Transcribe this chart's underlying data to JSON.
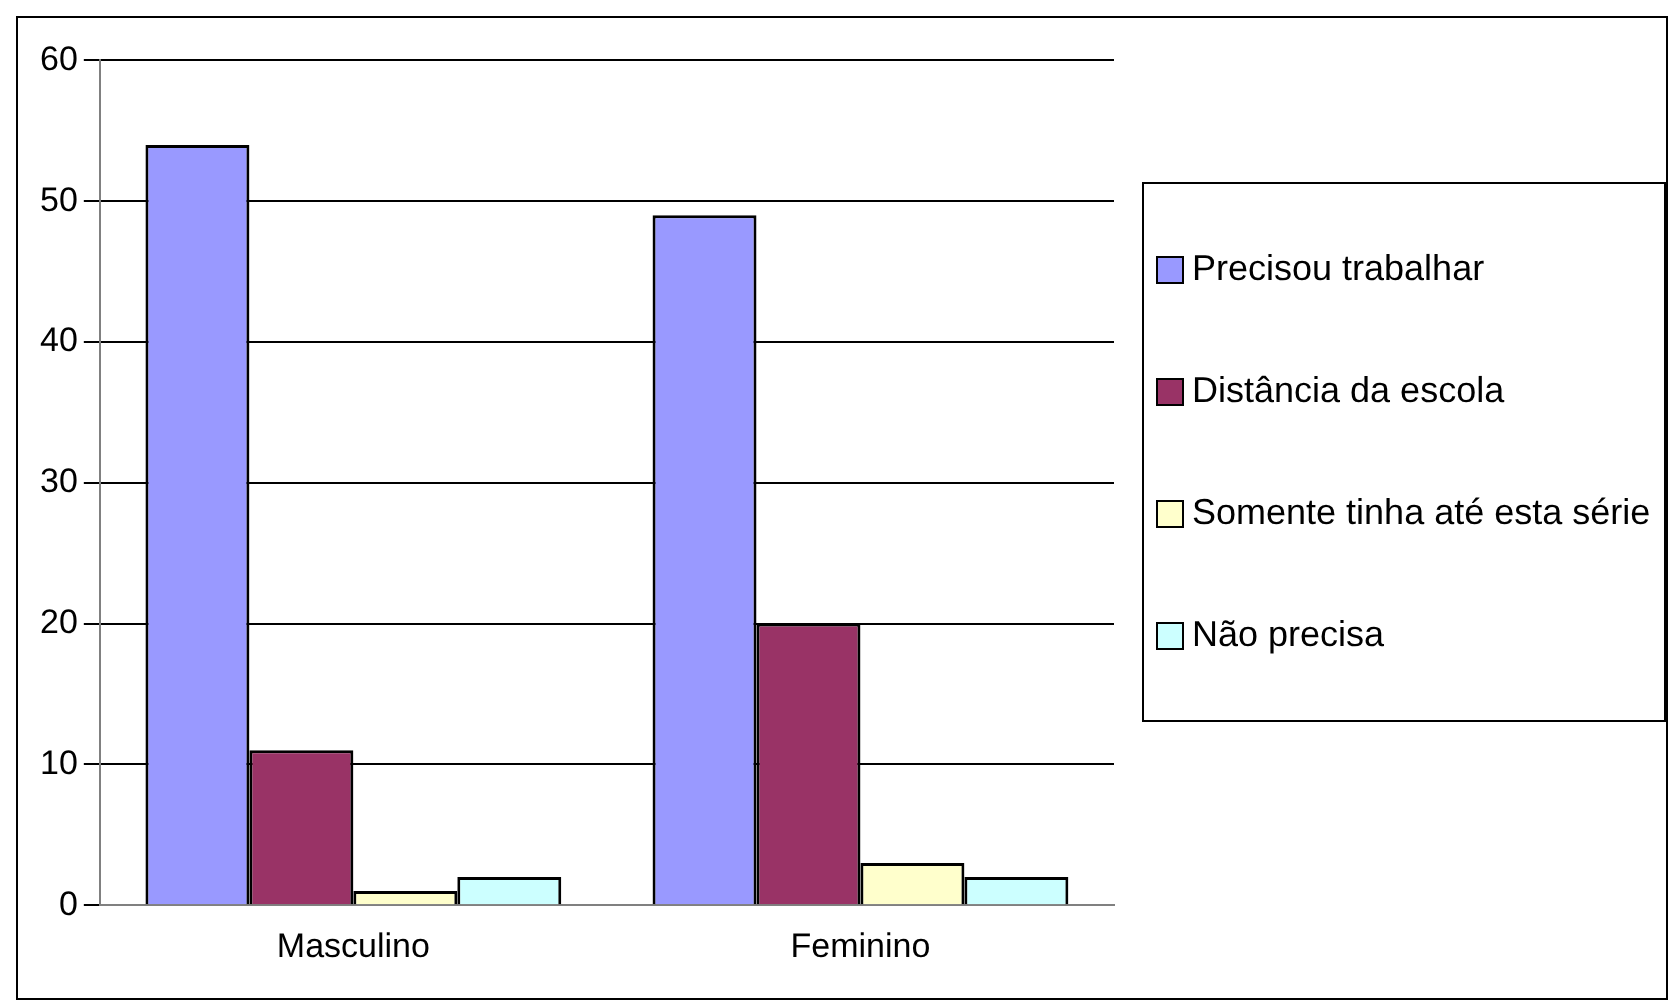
{
  "chart_data": {
    "type": "bar",
    "categories": [
      "Masculino",
      "Feminino"
    ],
    "series": [
      {
        "name": "Precisou trabalhar",
        "color": "#9999ff",
        "values": [
          54,
          49
        ]
      },
      {
        "name": "Distância da escola",
        "color": "#993366",
        "values": [
          11,
          20
        ]
      },
      {
        "name": "Somente tinha até esta série",
        "color": "#ffffcc",
        "values": [
          1,
          3
        ]
      },
      {
        "name": "Não precisa",
        "color": "#ccffff",
        "values": [
          2,
          2
        ]
      }
    ],
    "ylim": [
      0,
      60
    ],
    "yticks": [
      0,
      10,
      20,
      30,
      40,
      50,
      60
    ],
    "grid": "y",
    "legend": "right"
  }
}
